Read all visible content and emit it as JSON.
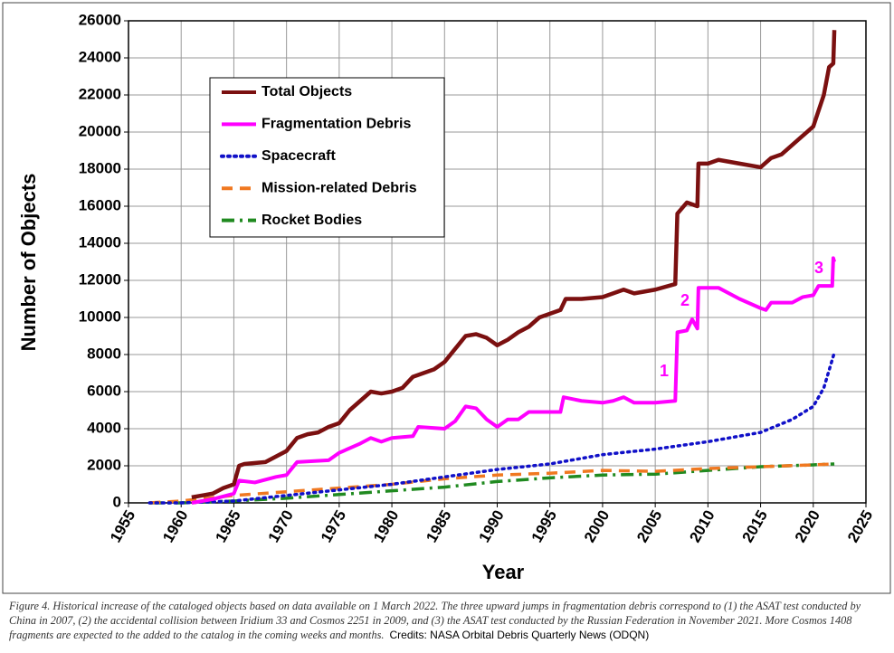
{
  "chart_data": {
    "type": "line",
    "xlabel": "Year",
    "ylabel": "Number of Objects",
    "xlim": [
      1955,
      2025
    ],
    "xticks": [
      1955,
      1960,
      1965,
      1970,
      1975,
      1980,
      1985,
      1990,
      1995,
      2000,
      2005,
      2010,
      2015,
      2020,
      2025
    ],
    "ylim": [
      0,
      26000
    ],
    "yticks": [
      0,
      2000,
      4000,
      6000,
      8000,
      10000,
      12000,
      14000,
      16000,
      18000,
      20000,
      22000,
      24000,
      26000
    ],
    "grid": true,
    "legend": "upper left",
    "series": [
      {
        "name": "Total Objects",
        "color": "#7b1010",
        "linestyle": "solid",
        "x": [
          1961,
          1962,
          1963,
          1964,
          1965,
          1965.5,
          1966,
          1968,
          1969,
          1970,
          1971,
          1972,
          1973,
          1974,
          1975,
          1976,
          1977,
          1978,
          1979,
          1980,
          1981,
          1982,
          1983,
          1984,
          1985,
          1986,
          1987,
          1988,
          1989,
          1990,
          1991,
          1992,
          1993,
          1994,
          1995,
          1996,
          1996.5,
          1998,
          2000,
          2002,
          2003,
          2005,
          2006.9,
          2007.1,
          2008,
          2009,
          2009.1,
          2010,
          2011,
          2013,
          2015,
          2016,
          2017,
          2018,
          2019,
          2020,
          2021,
          2021.5,
          2021.9,
          2022
        ],
        "values": [
          300,
          400,
          500,
          800,
          1000,
          2000,
          2100,
          2200,
          2500,
          2800,
          3500,
          3700,
          3800,
          4100,
          4300,
          5000,
          5500,
          6000,
          5900,
          6000,
          6200,
          6800,
          7000,
          7200,
          7600,
          8300,
          9000,
          9100,
          8900,
          8500,
          8800,
          9200,
          9500,
          10000,
          10200,
          10400,
          11000,
          11000,
          11100,
          11500,
          11300,
          11500,
          11800,
          15600,
          16200,
          16000,
          18300,
          18300,
          18500,
          18300,
          18100,
          18600,
          18800,
          19300,
          19800,
          20300,
          22000,
          23500,
          23700,
          25500
        ]
      },
      {
        "name": "Fragmentation Debris",
        "color": "#ff00ff",
        "linestyle": "solid",
        "x": [
          1961,
          1963,
          1965,
          1965.5,
          1967,
          1969,
          1970,
          1971,
          1974,
          1975,
          1977,
          1978,
          1979,
          1980,
          1982,
          1982.5,
          1985,
          1986,
          1987,
          1988,
          1989,
          1990,
          1991,
          1992,
          1993,
          1995,
          1996,
          1996.3,
          1998,
          2000,
          2001,
          2002,
          2003,
          2005,
          2006.9,
          2007.1,
          2008,
          2008.5,
          2009,
          2009.1,
          2011,
          2013,
          2015,
          2015.5,
          2016,
          2018,
          2019,
          2020,
          2020.5,
          2021.8,
          2021.9,
          2022
        ],
        "values": [
          0,
          200,
          500,
          1200,
          1100,
          1400,
          1500,
          2200,
          2300,
          2700,
          3200,
          3500,
          3300,
          3500,
          3600,
          4100,
          4000,
          4400,
          5200,
          5100,
          4500,
          4100,
          4500,
          4500,
          4900,
          4900,
          4900,
          5700,
          5500,
          5400,
          5500,
          5700,
          5400,
          5400,
          5500,
          9200,
          9300,
          9900,
          9400,
          11600,
          11600,
          11000,
          10500,
          10400,
          10800,
          10800,
          11100,
          11200,
          11700,
          11700,
          13200,
          13000
        ]
      },
      {
        "name": "Spacecraft",
        "color": "#1010c8",
        "linestyle": "dotted",
        "x": [
          1957,
          1960,
          1965,
          1970,
          1975,
          1980,
          1985,
          1990,
          1995,
          2000,
          2005,
          2010,
          2015,
          2018,
          2020,
          2021,
          2022
        ],
        "values": [
          0,
          0,
          100,
          400,
          700,
          1000,
          1400,
          1800,
          2100,
          2600,
          2900,
          3300,
          3800,
          4500,
          5200,
          6200,
          8100
        ]
      },
      {
        "name": "Mission-related Debris",
        "color": "#f07820",
        "linestyle": "dashed",
        "x": [
          1957,
          1960,
          1965,
          1970,
          1975,
          1980,
          1985,
          1990,
          1995,
          2000,
          2005,
          2010,
          2015,
          2020,
          2022
        ],
        "values": [
          0,
          100,
          400,
          600,
          800,
          1000,
          1300,
          1500,
          1600,
          1750,
          1700,
          1850,
          1950,
          2050,
          2100
        ]
      },
      {
        "name": "Rocket Bodies",
        "color": "#208a20",
        "linestyle": "dashdot",
        "x": [
          1957,
          1960,
          1965,
          1970,
          1975,
          1980,
          1985,
          1990,
          1995,
          2000,
          2005,
          2010,
          2015,
          2020,
          2022
        ],
        "values": [
          0,
          0,
          100,
          250,
          450,
          650,
          850,
          1150,
          1350,
          1500,
          1550,
          1750,
          1950,
          2050,
          2100
        ]
      }
    ],
    "annotations": [
      "1",
      "2",
      "3"
    ],
    "caption": "Figure 4. Historical increase of the cataloged objects based on data available on 1 March 2022. The three upward jumps in fragmentation debris correspond to (1) the ASAT test conducted by China in 2007, (2) the accidental collision between Iridium 33 and Cosmos 2251 in 2009, and (3) the ASAT test conducted by the Russian Federation in November 2021. More Cosmos 1408 fragments are expected to the added to the catalog in the coming weeks and months.",
    "credits": "Credits: NASA Orbital Debris Quarterly News  (ODQN)"
  }
}
